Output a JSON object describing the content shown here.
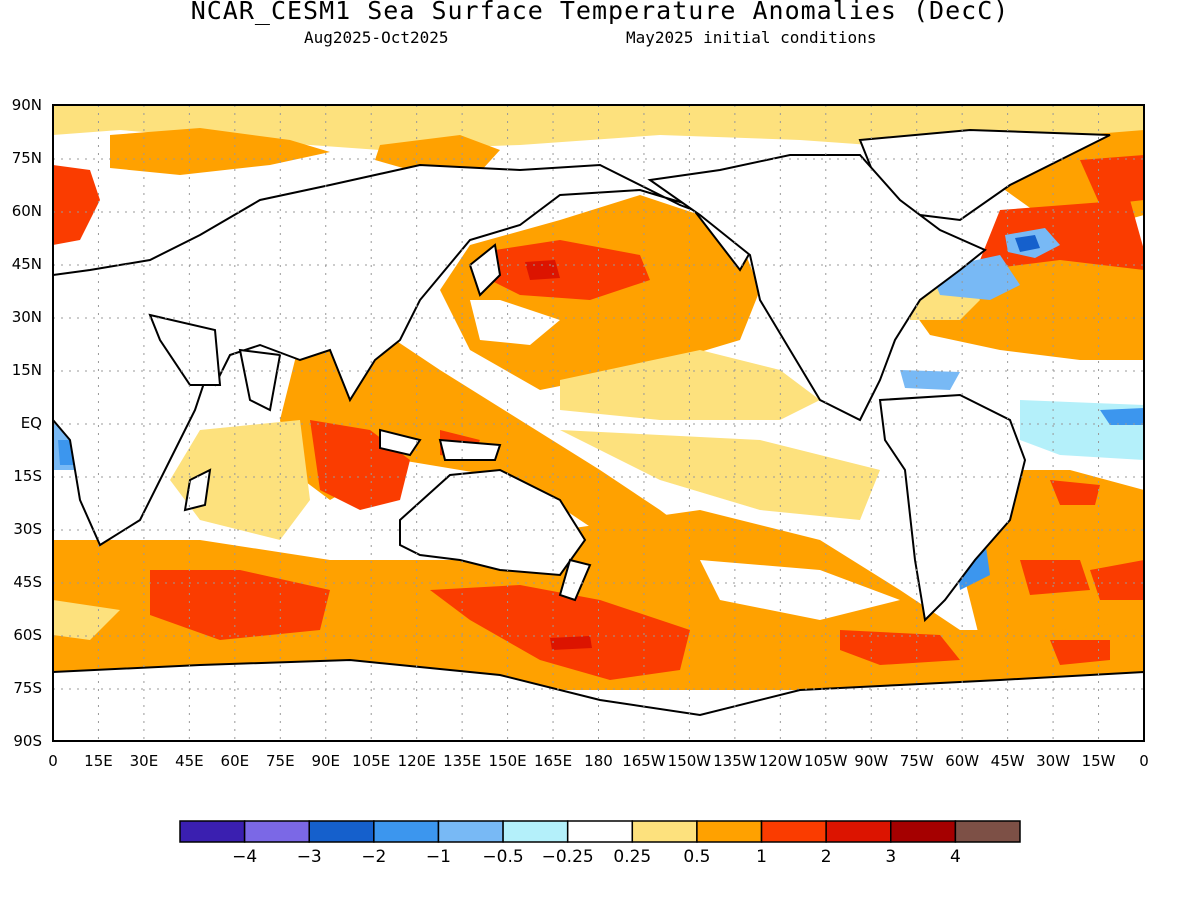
{
  "header": {
    "title": "NCAR_CESM1 Sea Surface Temperature Anomalies (DecC)",
    "period": "Aug2025-Oct2025",
    "init": "May2025 initial conditions"
  },
  "axes": {
    "lat_labels": [
      "90N",
      "75N",
      "60N",
      "45N",
      "30N",
      "15N",
      "EQ",
      "15S",
      "30S",
      "45S",
      "60S",
      "75S",
      "90S"
    ],
    "lon_labels": [
      "0",
      "15E",
      "30E",
      "45E",
      "60E",
      "75E",
      "90E",
      "105E",
      "120E",
      "135E",
      "150E",
      "165E",
      "180",
      "165W",
      "150W",
      "135W",
      "120W",
      "105W",
      "90W",
      "75W",
      "60W",
      "45W",
      "30W",
      "15W",
      "0"
    ]
  },
  "colorbar": {
    "colors": [
      "#3a1fb0",
      "#7b68e6",
      "#1560cc",
      "#3c96ee",
      "#78b9f5",
      "#b4f0fa",
      "#ffffff",
      "#fde17d",
      "#ffa100",
      "#fa3c00",
      "#dc1400",
      "#a50000",
      "#7d5046"
    ],
    "labels": [
      "-4",
      "-3",
      "-2",
      "-1",
      "-0.5",
      "-0.25",
      "0.25",
      "0.5",
      "1",
      "2",
      "3",
      "4"
    ]
  },
  "icons": {
    "coastlines": "coastline-outline"
  }
}
